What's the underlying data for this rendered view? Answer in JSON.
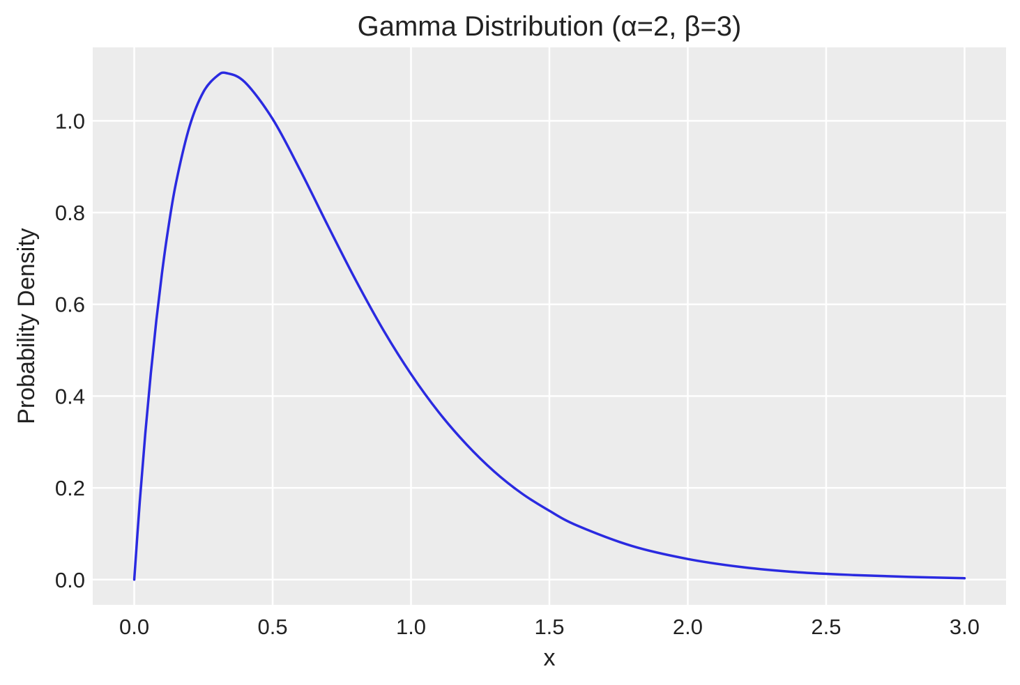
{
  "chart_data": {
    "type": "line",
    "title": "Gamma Distribution (α=2, β=3)",
    "xlabel": "x",
    "ylabel": "Probability Density",
    "xlim": [
      -0.15,
      3.15
    ],
    "ylim": [
      -0.055,
      1.16
    ],
    "grid": true,
    "x_ticks": [
      0.0,
      0.5,
      1.0,
      1.5,
      2.0,
      2.5,
      3.0
    ],
    "x_tick_labels": [
      "0.0",
      "0.5",
      "1.0",
      "1.5",
      "2.0",
      "2.5",
      "3.0"
    ],
    "y_ticks": [
      0.0,
      0.2,
      0.4,
      0.6,
      0.8,
      1.0
    ],
    "y_tick_labels": [
      "0.0",
      "0.2",
      "0.4",
      "0.6",
      "0.8",
      "1.0"
    ],
    "series": [
      {
        "color": "#2a2ae0",
        "x": [
          0.0,
          0.02,
          0.04,
          0.06,
          0.08,
          0.1,
          0.12,
          0.15,
          0.2,
          0.25,
          0.3,
          0.333,
          0.4,
          0.5,
          0.6,
          0.7,
          0.8,
          0.9,
          1.0,
          1.1,
          1.2,
          1.3,
          1.4,
          1.5,
          1.6,
          1.8,
          2.0,
          2.2,
          2.4,
          2.6,
          2.8,
          3.0
        ],
        "y": [
          0.0,
          0.17,
          0.319,
          0.45,
          0.566,
          0.667,
          0.754,
          0.862,
          0.988,
          1.063,
          1.098,
          1.104,
          1.084,
          1.004,
          0.892,
          0.771,
          0.653,
          0.544,
          0.448,
          0.365,
          0.295,
          0.236,
          0.188,
          0.15,
          0.118,
          0.073,
          0.045,
          0.027,
          0.016,
          0.01,
          0.006,
          0.003
        ]
      }
    ]
  }
}
